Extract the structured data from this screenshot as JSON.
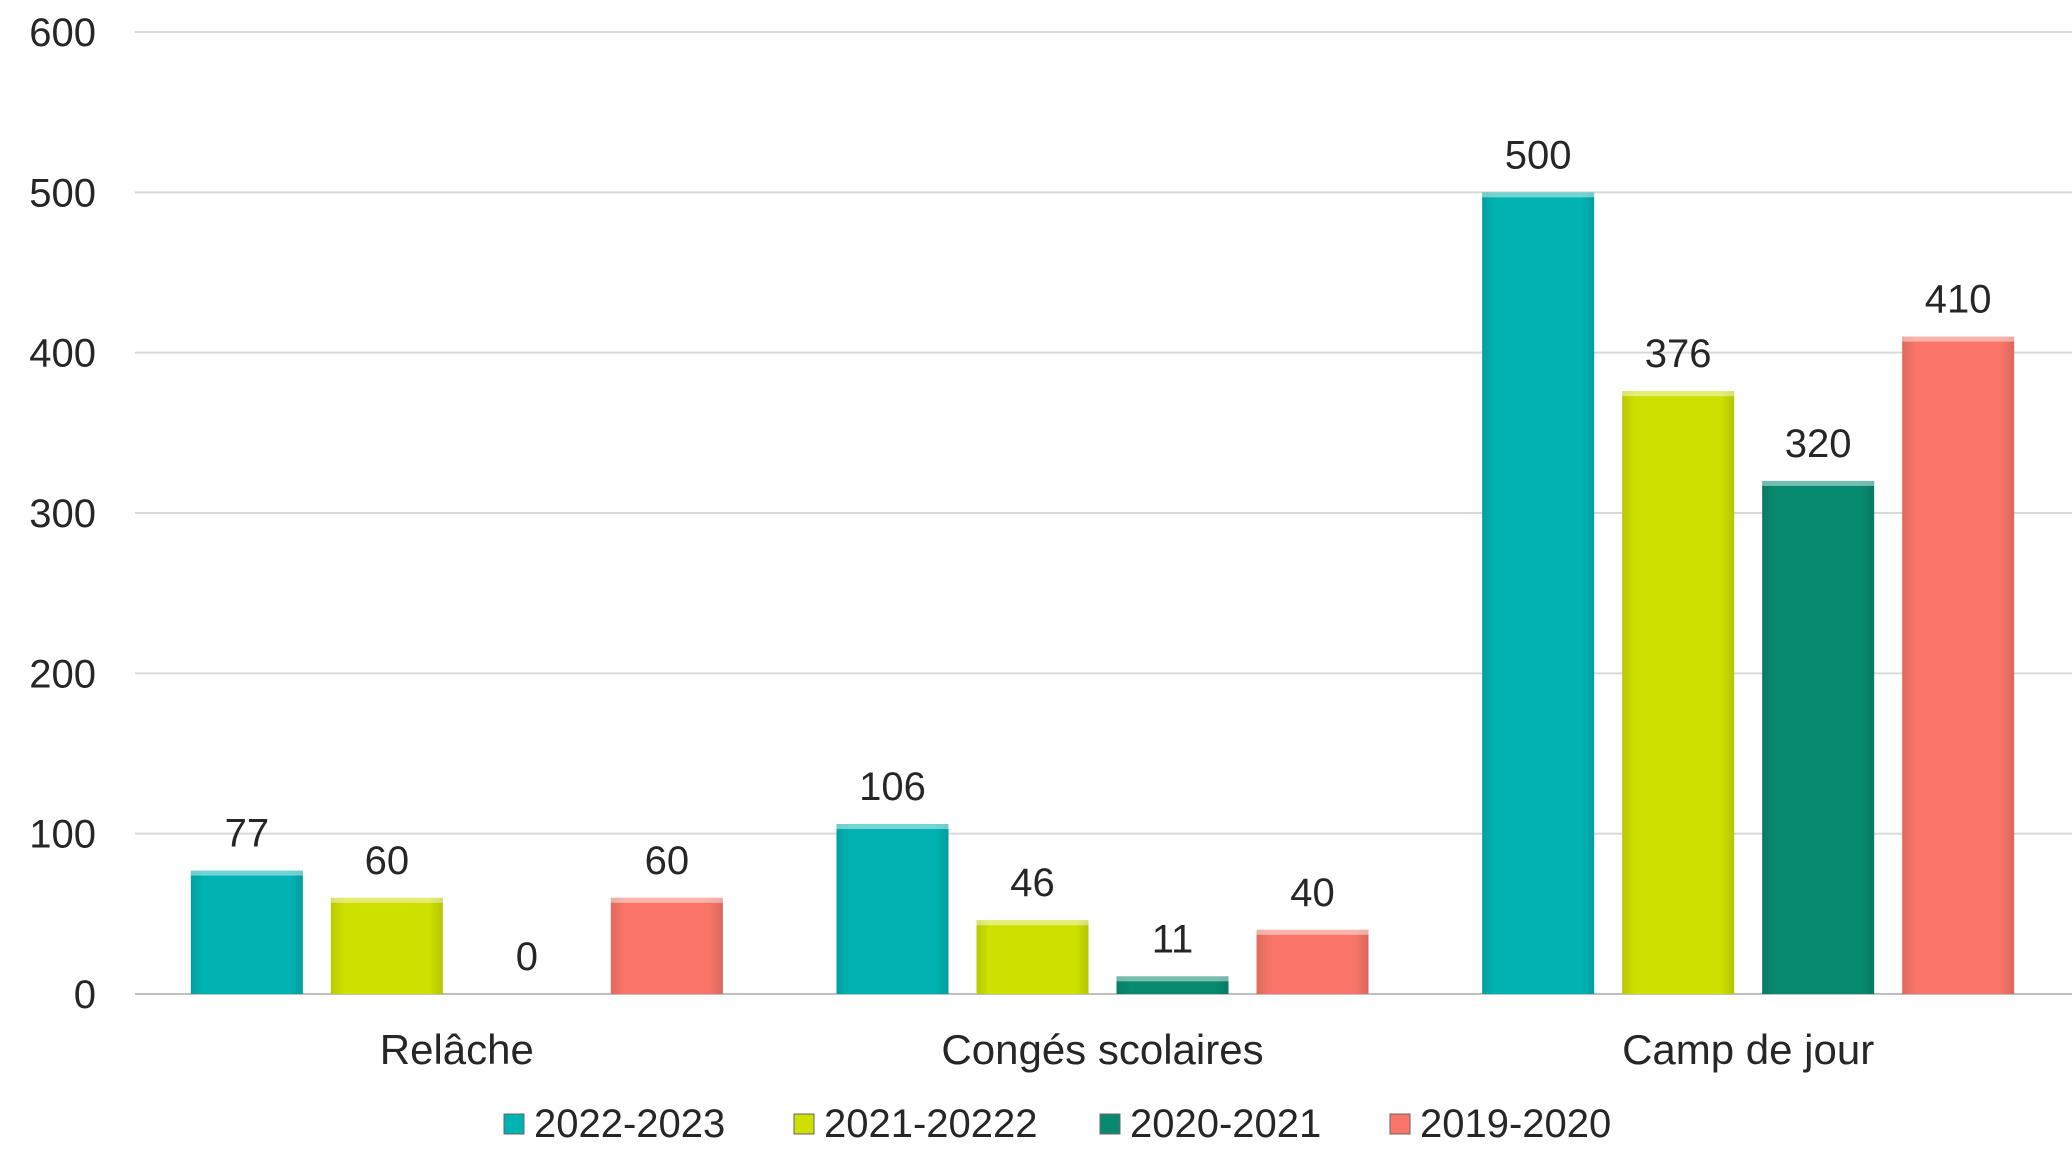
{
  "chart_data": {
    "type": "bar",
    "title": "",
    "xlabel": "",
    "ylabel": "",
    "categories": [
      "Relâche",
      "Congés scolaires",
      "Camp de jour"
    ],
    "series": [
      {
        "name": "2022-2023",
        "values": [
          77,
          106,
          500
        ],
        "color": "#00b3b3"
      },
      {
        "name": "2021-20222",
        "values": [
          60,
          46,
          376
        ],
        "color": "#cde000"
      },
      {
        "name": "2020-2021",
        "values": [
          0,
          11,
          320
        ],
        "color": "#078a6f"
      },
      {
        "name": "2019-2020",
        "values": [
          60,
          40,
          410
        ],
        "color": "#f87568"
      }
    ],
    "y_ticks": [
      "0",
      "100",
      "200",
      "300",
      "400",
      "500",
      "600"
    ],
    "ylim": [
      0,
      600
    ],
    "grid": true,
    "legend_position": "bottom",
    "data_labels": true
  }
}
